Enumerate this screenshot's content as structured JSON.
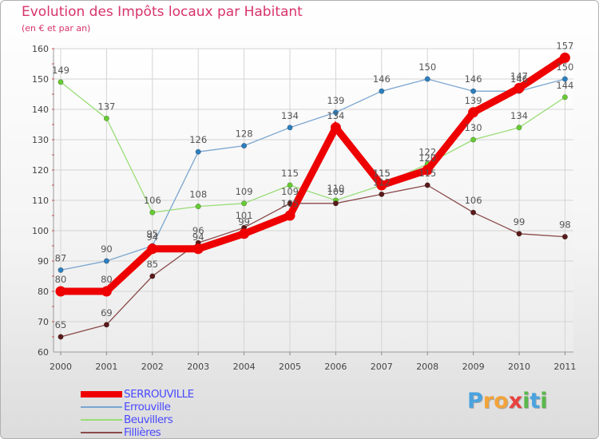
{
  "title": "Evolution des Impôts locaux par Habitant",
  "subtitle": "(en € et par an)",
  "logo": {
    "text": "Proxiti",
    "letters": [
      {
        "ch": "P",
        "color": "#4aa3df"
      },
      {
        "ch": "r",
        "color": "#f2a33a"
      },
      {
        "ch": "o",
        "color": "#f2a33a"
      },
      {
        "ch": "x",
        "color": "#e8423f"
      },
      {
        "ch": "i",
        "color": "#5ab84b"
      },
      {
        "ch": "t",
        "color": "#4aa3df"
      },
      {
        "ch": "i",
        "color": "#5ab84b"
      }
    ]
  },
  "chart_data": {
    "type": "line",
    "title": "Evolution des Impôts locaux par Habitant",
    "subtitle": "(en € et par an)",
    "x": [
      "2000",
      "2001",
      "2002",
      "2003",
      "2004",
      "2005",
      "2006",
      "2007",
      "2008",
      "2009",
      "2010",
      "2011"
    ],
    "ylim": [
      60,
      160
    ],
    "yticks": [
      60,
      70,
      80,
      90,
      100,
      110,
      120,
      130,
      140,
      150,
      160
    ],
    "grid": true,
    "legend": "bottom-left",
    "series": [
      {
        "name": "SERROUVILLE",
        "color": "#ee0000",
        "marker": "#ee0000",
        "label_color": "#555555",
        "bold": true,
        "values": [
          80,
          80,
          94,
          94,
          99,
          105,
          134,
          115,
          120,
          139,
          147,
          157
        ]
      },
      {
        "name": "Errouville",
        "color": "#7aa5cf",
        "marker": "#2c7fbf",
        "label_color": "#555555",
        "bold": false,
        "values": [
          87,
          90,
          95,
          126,
          128,
          134,
          139,
          146,
          150,
          146,
          146,
          150
        ]
      },
      {
        "name": "Beuvillers",
        "color": "#99dd77",
        "marker": "#66cc33",
        "label_color": "#555555",
        "bold": false,
        "values": [
          149,
          137,
          106,
          108,
          109,
          115,
          110,
          115,
          122,
          130,
          134,
          144
        ]
      },
      {
        "name": "Fillières",
        "color": "#8a4a4a",
        "marker": "#5a1a1a",
        "label_color": "#555555",
        "bold": false,
        "values": [
          65,
          69,
          85,
          96,
          101,
          109,
          109,
          112,
          115,
          106,
          99,
          98
        ]
      }
    ]
  }
}
